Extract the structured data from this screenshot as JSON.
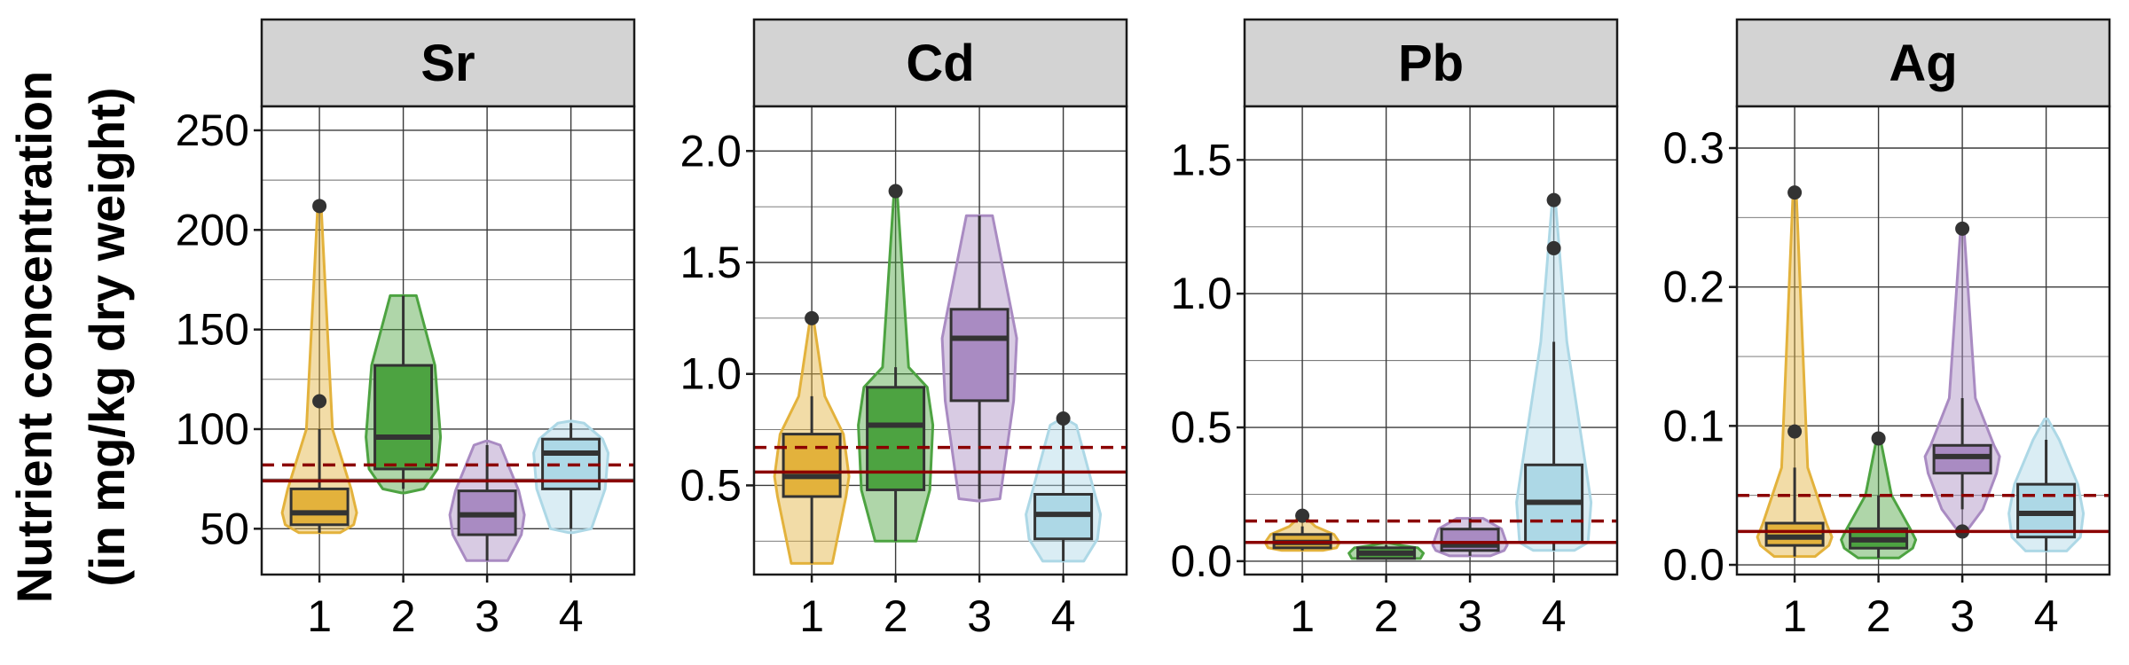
{
  "ylabel": [
    "Nutrient concentration",
    "(in mg/kg dry weight)"
  ],
  "colors": {
    "group1": "#E3B23C",
    "group2": "#4DA341",
    "group3": "#A98BC2",
    "group4": "#ADD8E6",
    "reference_line": "#8B0000",
    "outlier": "#333333",
    "strip": "#D3D3D3"
  },
  "chart_data": [
    {
      "type": "box",
      "title": "Sr",
      "categories": [
        "1",
        "2",
        "3",
        "4"
      ],
      "yticks": [
        50,
        100,
        150,
        200,
        250
      ],
      "ylim": [
        27,
        262
      ],
      "reference_solid": 74,
      "reference_dashed": 82,
      "groups": [
        {
          "category": "1",
          "q1": 52,
          "median": 58,
          "q3": 70,
          "whisker_low": 48,
          "whisker_high": 100,
          "violin_min": 48,
          "violin_max": 214,
          "outliers": [
            114,
            212
          ]
        },
        {
          "category": "2",
          "q1": 80,
          "median": 96,
          "q3": 132,
          "whisker_low": 70,
          "whisker_high": 167,
          "violin_min": 68,
          "violin_max": 167,
          "outliers": []
        },
        {
          "category": "3",
          "q1": 47,
          "median": 57,
          "q3": 69,
          "whisker_low": 34,
          "whisker_high": 92,
          "violin_min": 34,
          "violin_max": 94,
          "outliers": []
        },
        {
          "category": "4",
          "q1": 70,
          "median": 88,
          "q3": 95,
          "whisker_low": 50,
          "whisker_high": 103,
          "violin_min": 48,
          "violin_max": 104,
          "outliers": []
        }
      ]
    },
    {
      "type": "box",
      "title": "Cd",
      "categories": [
        "1",
        "2",
        "3",
        "4"
      ],
      "yticks": [
        "0.5",
        "1.0",
        "1.5",
        "2.0"
      ],
      "ylim": [
        0.1,
        2.2
      ],
      "reference_solid": 0.56,
      "reference_dashed": 0.67,
      "groups": [
        {
          "category": "1",
          "q1": 0.45,
          "median": 0.54,
          "q3": 0.73,
          "whisker_low": 0.15,
          "whisker_high": 0.9,
          "violin_min": 0.15,
          "violin_max": 1.25,
          "outliers": [
            1.25
          ]
        },
        {
          "category": "2",
          "q1": 0.48,
          "median": 0.77,
          "q3": 0.94,
          "whisker_low": 0.25,
          "whisker_high": 1.03,
          "violin_min": 0.25,
          "violin_max": 1.82,
          "outliers": [
            1.82
          ]
        },
        {
          "category": "3",
          "q1": 0.88,
          "median": 1.16,
          "q3": 1.29,
          "whisker_low": 0.44,
          "whisker_high": 1.71,
          "violin_min": 0.43,
          "violin_max": 1.71,
          "outliers": []
        },
        {
          "category": "4",
          "q1": 0.26,
          "median": 0.37,
          "q3": 0.46,
          "whisker_low": 0.16,
          "whisker_high": 0.77,
          "violin_min": 0.16,
          "violin_max": 0.8,
          "outliers": [
            0.8
          ]
        }
      ]
    },
    {
      "type": "box",
      "title": "Pb",
      "categories": [
        "1",
        "2",
        "3",
        "4"
      ],
      "yticks": [
        "0.0",
        "0.5",
        "1.0",
        "1.5"
      ],
      "ylim": [
        -0.05,
        1.7
      ],
      "reference_solid": 0.07,
      "reference_dashed": 0.15,
      "groups": [
        {
          "category": "1",
          "q1": 0.05,
          "median": 0.07,
          "q3": 0.1,
          "whisker_low": 0.04,
          "whisker_high": 0.13,
          "violin_min": 0.04,
          "violin_max": 0.17,
          "outliers": [
            0.17
          ]
        },
        {
          "category": "2",
          "q1": 0.01,
          "median": 0.03,
          "q3": 0.05,
          "whisker_low": 0.01,
          "whisker_high": 0.06,
          "violin_min": 0.01,
          "violin_max": 0.07,
          "outliers": []
        },
        {
          "category": "3",
          "q1": 0.04,
          "median": 0.06,
          "q3": 0.12,
          "whisker_low": 0.02,
          "whisker_high": 0.16,
          "violin_min": 0.02,
          "violin_max": 0.16,
          "outliers": []
        },
        {
          "category": "4",
          "q1": 0.07,
          "median": 0.22,
          "q3": 0.36,
          "whisker_low": 0.04,
          "whisker_high": 0.82,
          "violin_min": 0.04,
          "violin_max": 1.35,
          "outliers": [
            1.17,
            1.35
          ]
        }
      ]
    },
    {
      "type": "box",
      "title": "Ag",
      "categories": [
        "1",
        "2",
        "3",
        "4"
      ],
      "yticks": [
        "0.0",
        "0.1",
        "0.2",
        "0.3"
      ],
      "ylim": [
        -0.007,
        0.33
      ],
      "reference_solid": 0.024,
      "reference_dashed": 0.05,
      "groups": [
        {
          "category": "1",
          "q1": 0.014,
          "median": 0.02,
          "q3": 0.03,
          "whisker_low": 0.006,
          "whisker_high": 0.07,
          "violin_min": 0.006,
          "violin_max": 0.27,
          "outliers": [
            0.096,
            0.268
          ]
        },
        {
          "category": "2",
          "q1": 0.012,
          "median": 0.018,
          "q3": 0.026,
          "whisker_low": 0.005,
          "whisker_high": 0.05,
          "violin_min": 0.005,
          "violin_max": 0.092,
          "outliers": [
            0.091
          ]
        },
        {
          "category": "3",
          "q1": 0.066,
          "median": 0.078,
          "q3": 0.086,
          "whisker_low": 0.04,
          "whisker_high": 0.12,
          "violin_min": 0.022,
          "violin_max": 0.244,
          "outliers": [
            0.024,
            0.242
          ]
        },
        {
          "category": "4",
          "q1": 0.02,
          "median": 0.037,
          "q3": 0.058,
          "whisker_low": 0.01,
          "whisker_high": 0.09,
          "violin_min": 0.01,
          "violin_max": 0.105,
          "outliers": []
        }
      ]
    }
  ]
}
